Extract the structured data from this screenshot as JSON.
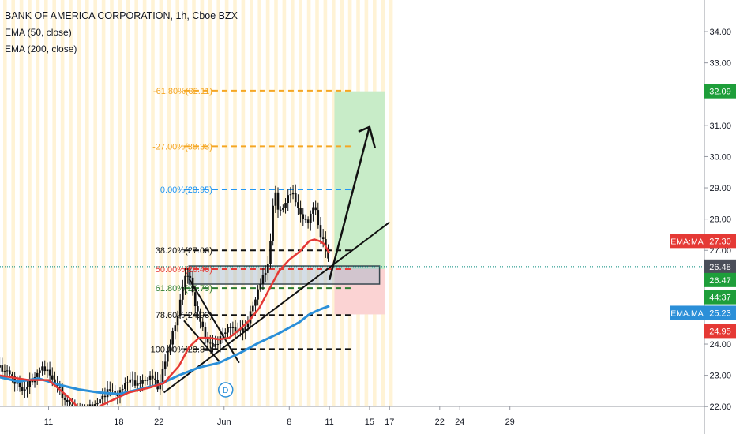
{
  "header": {
    "symbol_title": "BANK OF AMERICA CORPORATION, 1h, Cboe BZX",
    "indicator_1": "EMA (50, close)",
    "indicator_2": "EMA (200, close)"
  },
  "colors": {
    "background": "#ffffff",
    "session_band": "#fff3d6",
    "ema50": "#e53935",
    "ema200": "#2b8fd8",
    "candle": "#111111",
    "fib_orange": "#f5a623",
    "fib_blue": "#2196f3",
    "fib_black": "#111111",
    "fib_red": "#e53935",
    "fib_green": "#2e7d32",
    "target_zone": "#c8ecc8",
    "stop_zone": "#fbd3d3",
    "label_green": "#1e9e3a",
    "label_red": "#e53935",
    "label_dark": "#4a4e59",
    "label_blue": "#2b8fd8"
  },
  "chart_data": {
    "type": "candlestick",
    "title": "BANK OF AMERICA CORPORATION, 1h, Cboe BZX",
    "ylim": [
      21.9,
      34.4
    ],
    "price_axis_ticks": [
      "34.00",
      "33.00",
      "32.00",
      "31.00",
      "30.00",
      "29.00",
      "28.00",
      "27.00",
      "26.00",
      "25.00",
      "24.00",
      "23.00",
      "22.00"
    ],
    "time_axis_ticks": [
      {
        "label": "11",
        "i": 10
      },
      {
        "label": "18",
        "i": 24
      },
      {
        "label": "22",
        "i": 32
      },
      {
        "label": "Jun",
        "i": 45
      },
      {
        "label": "8",
        "i": 58
      },
      {
        "label": "11",
        "i": 66
      },
      {
        "label": "15",
        "i": 74
      },
      {
        "label": "17",
        "i": 78
      },
      {
        "label": "22",
        "i": 88
      },
      {
        "label": "24",
        "i": 92
      },
      {
        "label": "29",
        "i": 102
      }
    ],
    "price_path": [
      [
        0,
        23.25
      ],
      [
        2,
        23.1
      ],
      [
        4,
        22.65
      ],
      [
        5,
        22.5
      ],
      [
        7,
        22.9
      ],
      [
        9,
        23.3
      ],
      [
        10,
        23.05
      ],
      [
        12,
        22.6
      ],
      [
        13,
        22.25
      ],
      [
        14,
        22.1
      ],
      [
        15,
        21.9
      ],
      [
        16,
        21.75
      ],
      [
        18,
        21.95
      ],
      [
        20,
        22.15
      ],
      [
        22,
        22.55
      ],
      [
        24,
        22.35
      ],
      [
        25,
        22.7
      ],
      [
        26,
        22.85
      ],
      [
        28,
        22.7
      ],
      [
        29,
        22.85
      ],
      [
        31,
        22.95
      ],
      [
        32,
        22.5
      ],
      [
        33,
        23.4
      ],
      [
        34,
        23.85
      ],
      [
        35,
        24.5
      ],
      [
        36,
        25.1
      ],
      [
        37,
        26.1
      ],
      [
        38,
        26.3
      ],
      [
        39,
        25.4
      ],
      [
        40,
        24.9
      ],
      [
        41,
        24.3
      ],
      [
        42,
        24.0
      ],
      [
        43,
        23.9
      ],
      [
        44,
        24.15
      ],
      [
        45,
        24.35
      ],
      [
        46,
        24.6
      ],
      [
        47,
        24.4
      ],
      [
        48,
        24.5
      ],
      [
        49,
        24.35
      ],
      [
        50,
        24.9
      ],
      [
        51,
        25.3
      ],
      [
        52,
        25.9
      ],
      [
        53,
        26.2
      ],
      [
        54,
        26.7
      ],
      [
        55,
        29.0
      ],
      [
        56,
        28.2
      ],
      [
        57,
        28.4
      ],
      [
        58,
        28.9
      ],
      [
        59,
        28.7
      ],
      [
        60,
        28.25
      ],
      [
        61,
        27.9
      ],
      [
        62,
        28.0
      ],
      [
        63,
        28.5
      ],
      [
        64,
        27.6
      ],
      [
        65,
        27.15
      ],
      [
        66,
        26.6
      ]
    ],
    "ema_50_path": [
      [
        0,
        23.0
      ],
      [
        6,
        22.85
      ],
      [
        10,
        22.85
      ],
      [
        14,
        22.3
      ],
      [
        16,
        21.95
      ],
      [
        18,
        21.85
      ],
      [
        22,
        22.15
      ],
      [
        26,
        22.45
      ],
      [
        30,
        22.6
      ],
      [
        33,
        22.75
      ],
      [
        36,
        23.3
      ],
      [
        38,
        23.9
      ],
      [
        40,
        24.2
      ],
      [
        42,
        24.2
      ],
      [
        44,
        24.15
      ],
      [
        46,
        24.2
      ],
      [
        48,
        24.45
      ],
      [
        50,
        24.75
      ],
      [
        52,
        25.15
      ],
      [
        54,
        25.75
      ],
      [
        56,
        26.35
      ],
      [
        58,
        26.7
      ],
      [
        60,
        26.95
      ],
      [
        62,
        27.3
      ],
      [
        63,
        27.35
      ],
      [
        64,
        27.3
      ],
      [
        65,
        27.2
      ],
      [
        66,
        26.9
      ]
    ],
    "ema_200_path": [
      [
        0,
        22.95
      ],
      [
        4,
        22.8
      ],
      [
        8,
        22.9
      ],
      [
        12,
        22.7
      ],
      [
        16,
        22.55
      ],
      [
        20,
        22.45
      ],
      [
        24,
        22.4
      ],
      [
        28,
        22.55
      ],
      [
        32,
        22.7
      ],
      [
        36,
        23.0
      ],
      [
        40,
        23.25
      ],
      [
        44,
        23.4
      ],
      [
        48,
        23.7
      ],
      [
        52,
        24.05
      ],
      [
        56,
        24.35
      ],
      [
        60,
        24.7
      ],
      [
        62,
        24.95
      ],
      [
        64,
        25.1
      ],
      [
        66,
        25.22
      ]
    ],
    "fibonacci_levels": [
      {
        "label": "-61.80%(32.11)",
        "price": 32.11,
        "color": "#f5a623"
      },
      {
        "label": "-27.00%(30.33)",
        "price": 30.33,
        "color": "#f5a623"
      },
      {
        "label": "0.00%(28.95)",
        "price": 28.95,
        "color": "#2196f3"
      },
      {
        "label": "38.20%(27.00)",
        "price": 27.0,
        "color": "#111111"
      },
      {
        "label": "50.00%(26.40)",
        "price": 26.4,
        "color": "#e53935"
      },
      {
        "label": "61.80%(25.79)",
        "price": 25.79,
        "color": "#2e7d32"
      },
      {
        "label": "78.60%(24.93)",
        "price": 24.93,
        "color": "#111111"
      },
      {
        "label": "100.00%(23.84)",
        "price": 23.84,
        "color": "#111111"
      }
    ],
    "fib_range_i": [
      37,
      67
    ],
    "long_position": {
      "i_start": 67,
      "i_end": 77,
      "entry": 26.4,
      "target": 32.09,
      "stop": 24.95
    },
    "highlight_box": {
      "i_start": 38,
      "i_end": 76,
      "top": 26.5,
      "bottom": 25.92
    },
    "trend_lines": [
      {
        "from": [
          33,
          22.45
        ],
        "to": [
          78,
          27.9
        ]
      },
      {
        "from": [
          38,
          26.1
        ],
        "to": [
          48,
          23.4
        ]
      },
      {
        "from": [
          37,
          24.75
        ],
        "to": [
          44,
          23.45
        ]
      }
    ],
    "forecast_arrow": {
      "from": [
        66,
        26.05
      ],
      "to": [
        74,
        30.95
      ]
    },
    "current_price": 26.48,
    "price_labels": [
      {
        "text": "32.09",
        "price": 32.09,
        "bg": "#1e9e3a"
      },
      {
        "text": "27.30",
        "price": 27.3,
        "bg": "#e53935",
        "tag": "EMA:MA"
      },
      {
        "text": "26.48",
        "price": 26.48,
        "bg": "#4a4e59"
      },
      {
        "text": "26.47",
        "price": 26.05,
        "bg": "#1e9e3a"
      },
      {
        "text": "44:37",
        "price": 25.5,
        "bg": "#1e9e3a"
      },
      {
        "text": "25.23",
        "price": 25.0,
        "bg": "#2b8fd8",
        "tag": "EMA:MA"
      },
      {
        "text": "24.95",
        "price": 24.42,
        "bg": "#e53935"
      }
    ],
    "dividend_marker": {
      "label": "D",
      "i": 45
    }
  }
}
